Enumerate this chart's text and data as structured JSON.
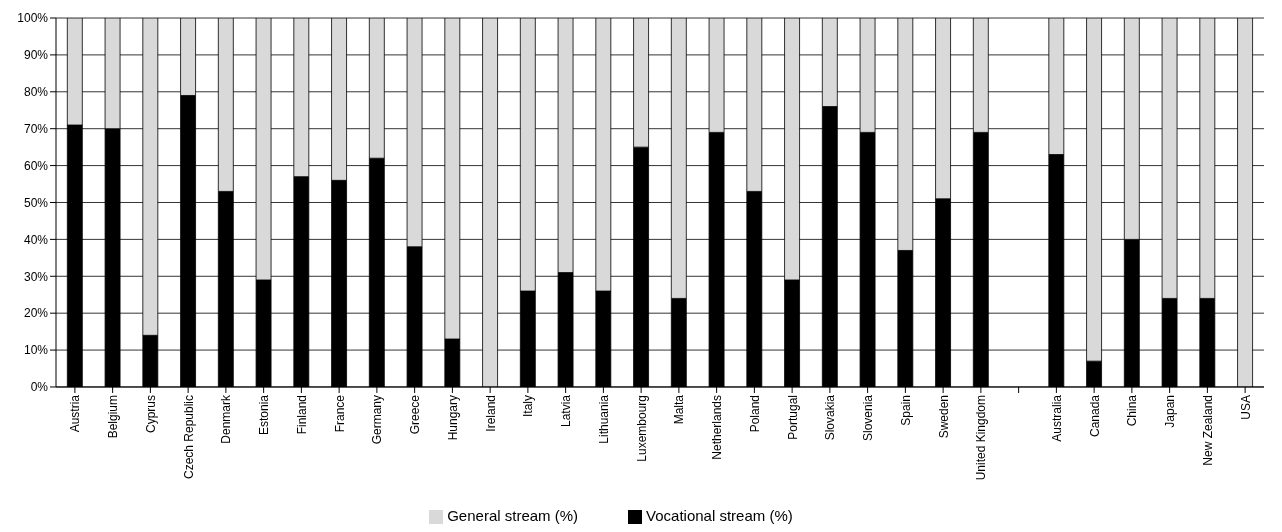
{
  "chart_data": {
    "type": "bar",
    "stacked": true,
    "categories": [
      "Austria",
      "Belgium",
      "Cyprus",
      "Czech Republic",
      "Denmark",
      "Estonia",
      "Finland",
      "France",
      "Germany",
      "Greece",
      "Hungary",
      "Ireland",
      "Italy",
      "Latvia",
      "Lithuania",
      "Luxembourg",
      "Malta",
      "Netherlands",
      "Poland",
      "Portugal",
      "Slovakia",
      "Slovenia",
      "Spain",
      "Sweden",
      "United Kingdom",
      null,
      "Australia",
      "Canada",
      "China",
      "Japan",
      "New Zealand",
      "USA"
    ],
    "series": [
      {
        "name": "Vocational stream (%)",
        "color": "#000000",
        "values": [
          71,
          70,
          14,
          79,
          53,
          29,
          57,
          56,
          62,
          38,
          13,
          0,
          26,
          31,
          26,
          65,
          24,
          69,
          53,
          29,
          76,
          69,
          37,
          51,
          69,
          null,
          63,
          7,
          40,
          24,
          24,
          0
        ]
      },
      {
        "name": "General stream (%)",
        "color": "#d9d9d9",
        "values": [
          29,
          30,
          86,
          21,
          47,
          71,
          43,
          44,
          38,
          62,
          87,
          100,
          74,
          69,
          74,
          35,
          76,
          31,
          47,
          71,
          24,
          31,
          63,
          49,
          31,
          null,
          37,
          93,
          60,
          76,
          76,
          100
        ]
      }
    ],
    "ylim": [
      0,
      100
    ],
    "yticks": [
      {
        "value": 0,
        "label": "0%"
      },
      {
        "value": 10,
        "label": "10%"
      },
      {
        "value": 20,
        "label": "20%"
      },
      {
        "value": 30,
        "label": "30%"
      },
      {
        "value": 40,
        "label": "40%"
      },
      {
        "value": 50,
        "label": "50%"
      },
      {
        "value": 60,
        "label": "60%"
      },
      {
        "value": 70,
        "label": "70%"
      },
      {
        "value": 80,
        "label": "80%"
      },
      {
        "value": 90,
        "label": "90%"
      },
      {
        "value": 100,
        "label": "100%"
      }
    ],
    "grid": "y",
    "legend": "bottom"
  }
}
